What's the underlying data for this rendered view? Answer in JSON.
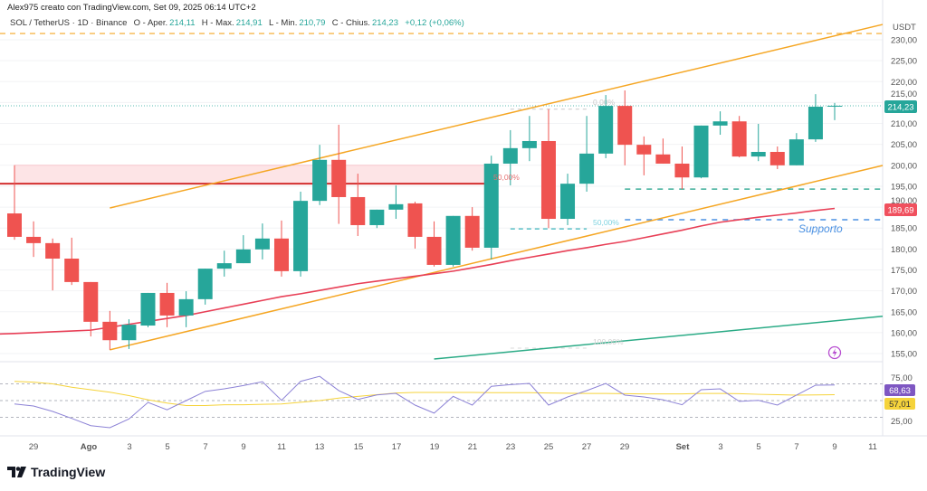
{
  "header": {
    "credit": "Alex975 creato con TradingView.com, Set 09, 2025 06:14 UTC+2",
    "symbol": "SOL / TetherUS · 1D · Binance",
    "open_label": "O - Aper.",
    "open": "214,11",
    "high_label": "H - Max.",
    "high": "214,91",
    "low_label": "L - Min.",
    "low": "210,79",
    "close_label": "C - Chius.",
    "close": "214,23",
    "change": "+0,12 (+0,06%)"
  },
  "price_axis": {
    "currency": "USDT",
    "ticks": [
      "230,00",
      "225,00",
      "220,00",
      "215,00",
      "210,00",
      "205,00",
      "200,00",
      "195,00",
      "190,00",
      "185,00",
      "180,00",
      "175,00",
      "170,00",
      "165,00",
      "160,00",
      "155,00"
    ],
    "last_price_badge": "214,23",
    "ma_badge": "189,69"
  },
  "rsi_axis": {
    "ticks": [
      "75,00",
      "25,00"
    ],
    "rsi_badge": "68,63",
    "rsi_ma_badge": "57,01"
  },
  "time_axis": {
    "labels": [
      "29",
      "Ago",
      "3",
      "5",
      "7",
      "9",
      "11",
      "13",
      "15",
      "17",
      "19",
      "21",
      "23",
      "25",
      "27",
      "29",
      "Set",
      "3",
      "5",
      "7",
      "9",
      "11"
    ]
  },
  "annotations": {
    "support_label": "Supporto",
    "fib_0": "0,00%",
    "fib_50": "50,00%",
    "fib_100": "100,00%",
    "fib_50_red": "50,00%"
  },
  "colors": {
    "up": "#26a69a",
    "down": "#ef5350",
    "channel": "#f5a623",
    "ma": "#e84057",
    "green_line": "#2bab86",
    "support": "#4a90e2",
    "rsi": "#8c82d6",
    "rsi_ma": "#f5d33b",
    "zone": "#fde4e6",
    "rsi_badge": "#7e57c2",
    "rsi_ma_badge": "#f5d33b"
  },
  "chart_data": {
    "type": "candlestick",
    "ylim": [
      153,
      232
    ],
    "columns": [
      "date",
      "open",
      "high",
      "low",
      "close"
    ],
    "candles": [
      [
        "2025-07-28",
        188.5,
        200.0,
        182.2,
        182.9
      ],
      [
        "2025-07-29",
        182.9,
        186.6,
        178.1,
        181.4
      ],
      [
        "2025-07-30",
        181.4,
        182.5,
        170.1,
        177.7
      ],
      [
        "2025-07-31",
        177.7,
        182.7,
        171.4,
        172.1
      ],
      [
        "2025-08-01",
        172.1,
        172.1,
        159.1,
        162.6
      ],
      [
        "2025-08-02",
        162.6,
        165.2,
        155.9,
        158.2
      ],
      [
        "2025-08-03",
        158.2,
        163.2,
        156.1,
        161.9
      ],
      [
        "2025-08-04",
        161.7,
        169.5,
        161.3,
        169.5
      ],
      [
        "2025-08-05",
        169.5,
        171.9,
        161.3,
        164.1
      ],
      [
        "2025-08-06",
        164.1,
        169.9,
        161.3,
        168.0
      ],
      [
        "2025-08-07",
        168.0,
        175.3,
        166.7,
        175.3
      ],
      [
        "2025-08-08",
        175.3,
        179.6,
        173.4,
        176.6
      ],
      [
        "2025-08-09",
        176.6,
        183.3,
        176.6,
        179.9
      ],
      [
        "2025-08-10",
        179.9,
        186.1,
        177.5,
        182.5
      ],
      [
        "2025-08-11",
        182.5,
        186.8,
        173.4,
        174.7
      ],
      [
        "2025-08-12",
        174.7,
        193.7,
        173.4,
        191.5
      ],
      [
        "2025-08-13",
        191.5,
        204.9,
        190.5,
        201.3
      ],
      [
        "2025-08-14",
        201.3,
        209.7,
        186.0,
        192.4
      ],
      [
        "2025-08-15",
        192.4,
        198.0,
        183.1,
        185.7
      ],
      [
        "2025-08-16",
        185.7,
        189.4,
        185.0,
        189.4
      ],
      [
        "2025-08-17",
        189.4,
        195.2,
        187.2,
        190.7
      ],
      [
        "2025-08-18",
        190.9,
        191.3,
        180.1,
        182.9
      ],
      [
        "2025-08-19",
        182.9,
        186.6,
        175.8,
        176.2
      ],
      [
        "2025-08-20",
        176.2,
        187.9,
        175.8,
        187.9
      ],
      [
        "2025-08-21",
        187.9,
        190.0,
        179.6,
        180.3
      ],
      [
        "2025-08-22",
        180.3,
        202.3,
        177.5,
        200.4
      ],
      [
        "2025-08-23",
        200.4,
        208.4,
        195.2,
        204.1
      ],
      [
        "2025-08-24",
        204.1,
        211.8,
        201.0,
        205.8
      ],
      [
        "2025-08-25",
        205.8,
        213.4,
        185.0,
        187.2
      ],
      [
        "2025-08-26",
        187.2,
        198.0,
        185.7,
        195.6
      ],
      [
        "2025-08-27",
        195.6,
        211.8,
        193.7,
        202.8
      ],
      [
        "2025-08-28",
        202.8,
        216.8,
        201.7,
        214.2
      ],
      [
        "2025-08-29",
        214.2,
        217.9,
        200.0,
        204.9
      ],
      [
        "2025-08-30",
        204.9,
        206.9,
        197.6,
        202.6
      ],
      [
        "2025-08-31",
        202.6,
        206.4,
        200.4,
        200.4
      ],
      [
        "2025-09-01",
        200.4,
        204.5,
        194.3,
        197.1
      ],
      [
        "2025-09-02",
        197.1,
        209.5,
        196.9,
        209.5
      ],
      [
        "2025-09-03",
        209.5,
        212.9,
        207.3,
        210.5
      ],
      [
        "2025-09-04",
        210.5,
        211.8,
        201.9,
        202.1
      ],
      [
        "2025-09-05",
        202.1,
        209.9,
        201.0,
        203.2
      ],
      [
        "2025-09-06",
        203.2,
        204.5,
        199.1,
        200.0
      ],
      [
        "2025-09-07",
        200.0,
        207.7,
        200.0,
        206.2
      ],
      [
        "2025-09-08",
        206.2,
        217.0,
        205.6,
        214.0
      ],
      [
        "2025-09-09",
        214.11,
        214.91,
        210.79,
        214.23
      ]
    ],
    "moving_average": [
      159.8,
      160.0,
      160.2,
      160.4,
      160.6,
      161.3,
      162.0,
      162.7,
      163.4,
      164.1,
      165.0,
      165.9,
      166.8,
      167.7,
      168.6,
      169.3,
      170.1,
      170.9,
      171.7,
      172.3,
      172.9,
      173.5,
      174.1,
      174.7,
      175.5,
      176.3,
      177.2,
      178.0,
      178.8,
      179.6,
      180.3,
      181.1,
      181.8,
      182.7,
      183.6,
      184.5,
      185.5,
      186.4,
      187.0,
      187.6,
      188.1,
      188.6,
      189.2,
      189.69
    ],
    "resistance": {
      "level": 195.6,
      "zone_top": 200.0,
      "from": "2025-07-28",
      "to": "2025-08-22"
    },
    "top_dashed_level": 231.5,
    "channel_upper": [
      [
        "2025-08-02",
        189.8
      ],
      [
        "2025-09-11",
        233.1
      ]
    ],
    "channel_lower": [
      [
        "2025-08-02",
        155.9
      ],
      [
        "2025-09-11",
        199.4
      ]
    ],
    "green_trendline": [
      [
        "2025-08-19",
        153.7
      ],
      [
        "2025-09-11",
        163.7
      ]
    ],
    "support_levels": [
      {
        "level": 194.3,
        "from": "2025-08-29",
        "color": "teal"
      },
      {
        "level": 187.0,
        "from": "2025-08-29",
        "color": "blue"
      }
    ],
    "fib": {
      "from": "2025-08-23",
      "to": "2025-08-27",
      "level_0": 213.4,
      "level_50": 184.8,
      "level_100": 156.3
    },
    "rsi": {
      "bands": [
        70,
        50,
        30
      ],
      "values": [
        46,
        43.5,
        37,
        28.7,
        20,
        17.6,
        28,
        47.8,
        39,
        50,
        61,
        64,
        68,
        72.5,
        50.3,
        73,
        79,
        62,
        51.4,
        56.8,
        58.6,
        44.6,
        35,
        55,
        44.6,
        67,
        69,
        70.5,
        44.6,
        54.3,
        61.9,
        70.5,
        56.5,
        54.3,
        51,
        45,
        63,
        64,
        49,
        50.3,
        44.6,
        56.5,
        68.4,
        68.63
      ],
      "ma": [
        73,
        72,
        70,
        66,
        63,
        60,
        56,
        51,
        47,
        44,
        44,
        45,
        45,
        45.5,
        46,
        48,
        50,
        53,
        55,
        57,
        59,
        59.7,
        59.7,
        59.7,
        59.7,
        59.5,
        59.5,
        59.5,
        59,
        58.8,
        58.5,
        58.5,
        58.3,
        58,
        58,
        58,
        58.5,
        58.5,
        58.3,
        57.5,
        57,
        56.5,
        56.8,
        57.01
      ]
    }
  }
}
